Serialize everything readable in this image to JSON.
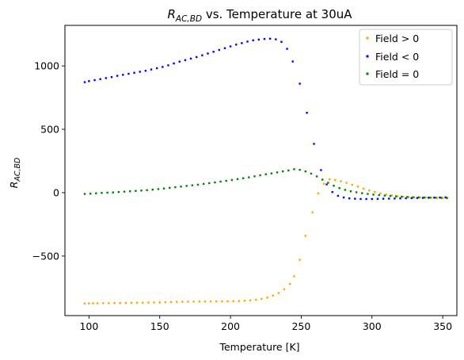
{
  "chart_data": {
    "type": "scatter",
    "title_parts": {
      "symbol": "R",
      "subscript": "AC,BD",
      "rest": " vs. Temperature at 30uA"
    },
    "xlabel": "Temperature [K]",
    "ylabel_parts": {
      "symbol": "R",
      "subscript": "AC,BD"
    },
    "xlim": [
      83,
      360
    ],
    "ylim": [
      -970,
      1320
    ],
    "xticks": [
      100,
      150,
      200,
      250,
      300,
      350
    ],
    "yticks": [
      -500,
      0,
      500,
      1000
    ],
    "ytick_labels": [
      "−500",
      "0",
      "500",
      "1000"
    ],
    "grid": false,
    "legend_position": "upper right",
    "series": [
      {
        "name": "Field > 0",
        "color": "#ffa500",
        "points": [
          [
            97,
            -875
          ],
          [
            100,
            -874
          ],
          [
            103,
            -873
          ],
          [
            106,
            -873
          ],
          [
            110,
            -872
          ],
          [
            114,
            -872
          ],
          [
            118,
            -871
          ],
          [
            122,
            -871
          ],
          [
            126,
            -870
          ],
          [
            130,
            -869
          ],
          [
            134,
            -868
          ],
          [
            138,
            -868
          ],
          [
            142,
            -867
          ],
          [
            146,
            -866
          ],
          [
            150,
            -866
          ],
          [
            154,
            -864
          ],
          [
            158,
            -863
          ],
          [
            162,
            -862
          ],
          [
            166,
            -861
          ],
          [
            170,
            -860
          ],
          [
            174,
            -860
          ],
          [
            178,
            -859
          ],
          [
            182,
            -859
          ],
          [
            186,
            -858
          ],
          [
            190,
            -858
          ],
          [
            194,
            -857
          ],
          [
            198,
            -857
          ],
          [
            202,
            -856
          ],
          [
            206,
            -855
          ],
          [
            210,
            -853
          ],
          [
            214,
            -850
          ],
          [
            218,
            -845
          ],
          [
            222,
            -838
          ],
          [
            226,
            -828
          ],
          [
            230,
            -812
          ],
          [
            234,
            -792
          ],
          [
            238,
            -762
          ],
          [
            242,
            -720
          ],
          [
            245,
            -660
          ],
          [
            249,
            -530
          ],
          [
            253,
            -340
          ],
          [
            258,
            -155
          ],
          [
            262,
            -5
          ],
          [
            266,
            70
          ],
          [
            270,
            105
          ],
          [
            274,
            100
          ],
          [
            278,
            90
          ],
          [
            282,
            78
          ],
          [
            286,
            62
          ],
          [
            290,
            48
          ],
          [
            294,
            32
          ],
          [
            298,
            18
          ],
          [
            302,
            6
          ],
          [
            306,
            -6
          ],
          [
            310,
            -15
          ],
          [
            314,
            -22
          ],
          [
            318,
            -28
          ],
          [
            322,
            -32
          ],
          [
            326,
            -35
          ],
          [
            330,
            -37
          ],
          [
            334,
            -38
          ],
          [
            338,
            -39
          ],
          [
            342,
            -40
          ],
          [
            346,
            -41
          ],
          [
            350,
            -42
          ],
          [
            353,
            -43
          ]
        ]
      },
      {
        "name": "Field < 0",
        "color": "#0000ff",
        "points": [
          [
            97,
            872
          ],
          [
            100,
            880
          ],
          [
            104,
            888
          ],
          [
            108,
            896
          ],
          [
            112,
            904
          ],
          [
            116,
            912
          ],
          [
            120,
            922
          ],
          [
            124,
            930
          ],
          [
            128,
            938
          ],
          [
            132,
            946
          ],
          [
            136,
            954
          ],
          [
            140,
            962
          ],
          [
            144,
            972
          ],
          [
            148,
            982
          ],
          [
            152,
            992
          ],
          [
            156,
            1005
          ],
          [
            160,
            1020
          ],
          [
            164,
            1034
          ],
          [
            168,
            1046
          ],
          [
            172,
            1058
          ],
          [
            176,
            1070
          ],
          [
            180,
            1084
          ],
          [
            184,
            1098
          ],
          [
            188,
            1112
          ],
          [
            192,
            1126
          ],
          [
            196,
            1140
          ],
          [
            200,
            1154
          ],
          [
            204,
            1168
          ],
          [
            208,
            1180
          ],
          [
            212,
            1192
          ],
          [
            216,
            1202
          ],
          [
            220,
            1208
          ],
          [
            224,
            1213
          ],
          [
            228,
            1215
          ],
          [
            232,
            1210
          ],
          [
            236,
            1190
          ],
          [
            240,
            1135
          ],
          [
            244,
            1035
          ],
          [
            249,
            860
          ],
          [
            254,
            630
          ],
          [
            259,
            385
          ],
          [
            264,
            178
          ],
          [
            268,
            65
          ],
          [
            272,
            5
          ],
          [
            276,
            -25
          ],
          [
            280,
            -38
          ],
          [
            284,
            -45
          ],
          [
            288,
            -48
          ],
          [
            292,
            -50
          ],
          [
            296,
            -50
          ],
          [
            300,
            -50
          ],
          [
            304,
            -49
          ],
          [
            308,
            -48
          ],
          [
            312,
            -47
          ],
          [
            316,
            -46
          ],
          [
            320,
            -45
          ],
          [
            324,
            -44
          ],
          [
            328,
            -43
          ],
          [
            332,
            -42
          ],
          [
            336,
            -41
          ],
          [
            340,
            -40
          ],
          [
            344,
            -39
          ],
          [
            348,
            -38
          ],
          [
            352,
            -37
          ]
        ]
      },
      {
        "name": "Field = 0",
        "color": "#008000",
        "points": [
          [
            97,
            -10
          ],
          [
            101,
            -8
          ],
          [
            105,
            -5
          ],
          [
            109,
            -2
          ],
          [
            113,
            0
          ],
          [
            117,
            2
          ],
          [
            121,
            5
          ],
          [
            125,
            8
          ],
          [
            129,
            11
          ],
          [
            133,
            14
          ],
          [
            137,
            17
          ],
          [
            141,
            20
          ],
          [
            145,
            24
          ],
          [
            149,
            28
          ],
          [
            153,
            33
          ],
          [
            157,
            38
          ],
          [
            161,
            43
          ],
          [
            165,
            48
          ],
          [
            169,
            53
          ],
          [
            173,
            58
          ],
          [
            177,
            63
          ],
          [
            181,
            69
          ],
          [
            185,
            75
          ],
          [
            189,
            81
          ],
          [
            193,
            87
          ],
          [
            197,
            93
          ],
          [
            201,
            100
          ],
          [
            205,
            107
          ],
          [
            209,
            114
          ],
          [
            213,
            121
          ],
          [
            217,
            129
          ],
          [
            221,
            137
          ],
          [
            225,
            145
          ],
          [
            229,
            152
          ],
          [
            233,
            160
          ],
          [
            237,
            168
          ],
          [
            241,
            175
          ],
          [
            245,
            185
          ],
          [
            249,
            180
          ],
          [
            253,
            168
          ],
          [
            257,
            150
          ],
          [
            261,
            128
          ],
          [
            265,
            103
          ],
          [
            269,
            78
          ],
          [
            273,
            55
          ],
          [
            277,
            36
          ],
          [
            281,
            22
          ],
          [
            285,
            11
          ],
          [
            289,
            3
          ],
          [
            293,
            -4
          ],
          [
            297,
            -10
          ],
          [
            301,
            -15
          ],
          [
            305,
            -19
          ],
          [
            309,
            -23
          ],
          [
            313,
            -26
          ],
          [
            317,
            -29
          ],
          [
            321,
            -32
          ],
          [
            325,
            -34
          ],
          [
            329,
            -36
          ],
          [
            333,
            -37
          ],
          [
            337,
            -38
          ],
          [
            341,
            -39
          ],
          [
            345,
            -40
          ],
          [
            349,
            -41
          ],
          [
            353,
            -42
          ]
        ]
      }
    ]
  }
}
